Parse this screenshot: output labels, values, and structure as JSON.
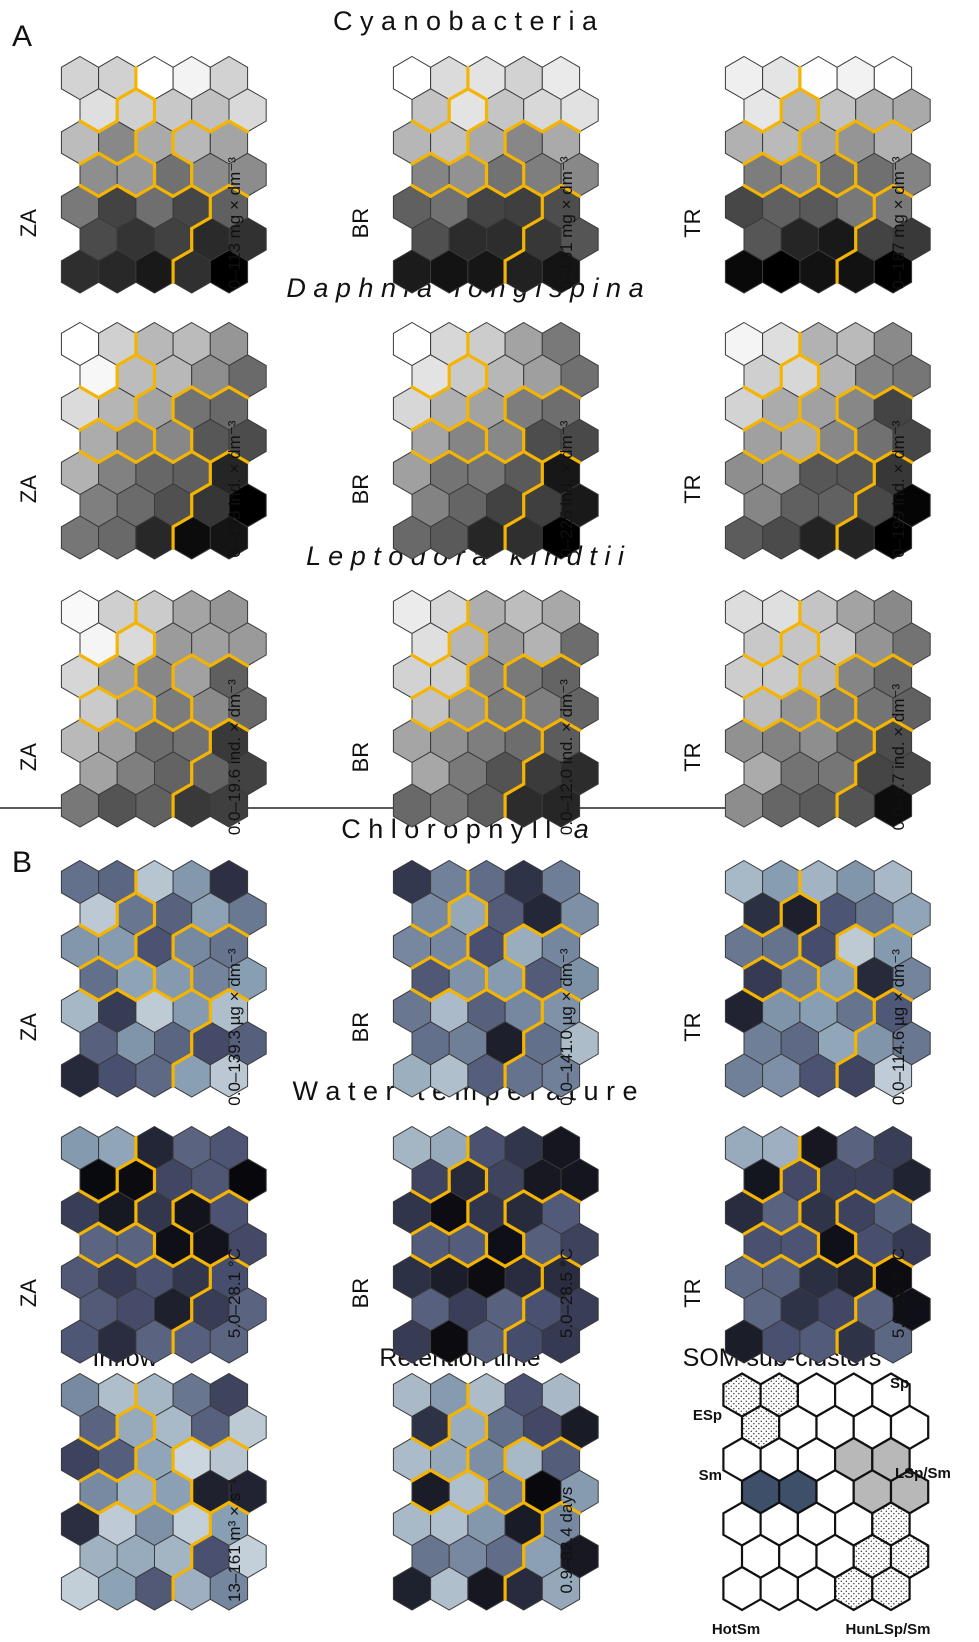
{
  "sections": [
    {
      "letter": "A"
    },
    {
      "letter": "B"
    }
  ],
  "rows": [
    {
      "title": "C y a n o b a c t e r i a",
      "italic": false,
      "scheme": "gray",
      "panels": [
        {
          "label": "ZA",
          "range": "0–113 mg × dm⁻³"
        },
        {
          "label": "BR",
          "range": "0–161 mg × dm⁻³"
        },
        {
          "label": "TR",
          "range": "0–187 mg × dm⁻³"
        }
      ]
    },
    {
      "title": "D a p h n i a   l o n g i s p i n a",
      "italic": true,
      "scheme": "gray",
      "panels": [
        {
          "label": "ZA",
          "range": "0–198 ind. × dm⁻³"
        },
        {
          "label": "BR",
          "range": "0–225 ind. × dm⁻³"
        },
        {
          "label": "TR",
          "range": "0–199 ind. × dm⁻³"
        }
      ]
    },
    {
      "title": "L e p t o d o r a   k i n d t i i",
      "italic": true,
      "scheme": "gray",
      "panels": [
        {
          "label": "ZA",
          "range": "0.0–19.6 ind. × dm⁻³"
        },
        {
          "label": "BR",
          "range": "0.0–12.0 ind. × dm⁻³"
        },
        {
          "label": "TR",
          "range": "0.0–6.7 ind. × dm⁻³"
        }
      ]
    },
    {
      "title": "C h l o r o p h y l l   a",
      "italic": false,
      "scheme": "blue",
      "panels": [
        {
          "label": "ZA",
          "range": "0.0–139.3 µg × dm⁻³"
        },
        {
          "label": "BR",
          "range": "0.0–141.0 µg × dm⁻³"
        },
        {
          "label": "TR",
          "range": "0.0–114.6 µg × dm⁻³"
        }
      ]
    },
    {
      "title": "W a t e r   t e m p e r a t u r e",
      "italic": false,
      "scheme": "blue",
      "panels": [
        {
          "label": "ZA",
          "range": "5.0–28.1 °C"
        },
        {
          "label": "BR",
          "range": "5.0–28.5 °C"
        },
        {
          "label": "TR",
          "range": "5.0–28.3 °C"
        }
      ]
    }
  ],
  "bottom": {
    "inflow": {
      "title": "Inflow",
      "range": "13–161 m³ × s⁻¹"
    },
    "retention": {
      "title": "Retention time",
      "range": "0.9–82.4 days"
    },
    "subclusters": {
      "title": "SOM sub-clusters",
      "labels": [
        "Sp",
        "ESp",
        "LSp/Sm",
        "Sm",
        "HotSm",
        "HunLSp/Sm"
      ]
    }
  },
  "colors": {
    "highlight": "#f4b400",
    "divider": "#222222"
  }
}
